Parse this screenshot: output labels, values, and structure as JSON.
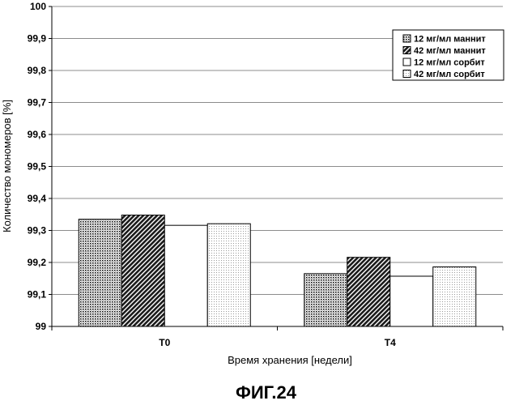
{
  "chart_data": {
    "type": "bar",
    "categories": [
      "T0",
      "T4"
    ],
    "series": [
      {
        "name": "12 мг/мл маннит",
        "values": [
          99.335,
          99.165
        ],
        "pattern": "dots"
      },
      {
        "name": "42 мг/мл маннит",
        "values": [
          99.348,
          99.216
        ],
        "pattern": "hatch"
      },
      {
        "name": "12 мг/мл сорбит",
        "values": [
          99.316,
          99.157
        ],
        "pattern": "white"
      },
      {
        "name": "42 мг/мл сорбит",
        "values": [
          99.321,
          99.186
        ],
        "pattern": "fine-dots"
      }
    ],
    "xlabel": "Время хранения [недели]",
    "ylabel": "Количество мономеров [%]",
    "ylim": [
      99,
      100
    ],
    "yticks": [
      "99",
      "99,1",
      "99,2",
      "99,3",
      "99,4",
      "99,5",
      "99,6",
      "99,7",
      "99,8",
      "99,9",
      "100"
    ],
    "grid": true,
    "legend_position": "top-right"
  },
  "figure_caption": "ФИГ.24"
}
